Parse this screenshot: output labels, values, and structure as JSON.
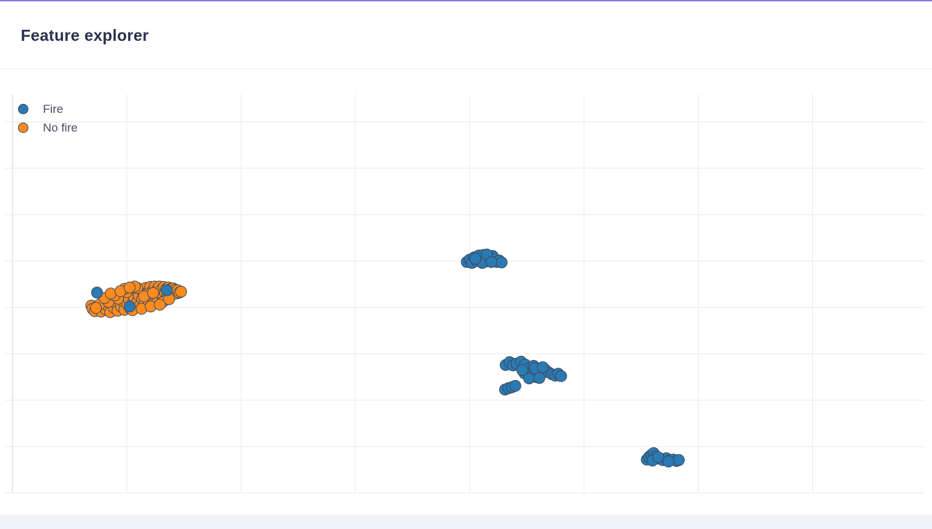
{
  "page": {
    "title": "Feature explorer"
  },
  "colors": {
    "fire": "#2a7ab3",
    "no_fire": "#ff8b1f",
    "marker_outline": "#3b4a5e",
    "grid": "#e8e9ee",
    "accent": "#8f7bd9"
  },
  "chart_data": {
    "type": "scatter",
    "title": "",
    "xlabel": "",
    "ylabel": "",
    "xlim": [
      0,
      15
    ],
    "ylim": [
      0,
      8
    ],
    "grid": true,
    "legend_placement": "top-left",
    "series": [
      {
        "name": "No fire",
        "color_key": "no_fire",
        "points": [
          [
            1.38,
            4.04
          ],
          [
            1.4,
            3.97
          ],
          [
            1.44,
            3.92
          ],
          [
            1.49,
            4.03
          ],
          [
            1.55,
            3.91
          ],
          [
            1.58,
            4.11
          ],
          [
            1.63,
            3.96
          ],
          [
            1.66,
            4.05
          ],
          [
            1.71,
            3.9
          ],
          [
            1.74,
            4.15
          ],
          [
            1.77,
            4.0
          ],
          [
            1.81,
            4.09
          ],
          [
            1.84,
            3.93
          ],
          [
            1.87,
            4.22
          ],
          [
            1.9,
            4.02
          ],
          [
            1.93,
            4.13
          ],
          [
            1.96,
            3.95
          ],
          [
            1.99,
            4.27
          ],
          [
            2.01,
            4.07
          ],
          [
            2.04,
            4.17
          ],
          [
            2.06,
            3.98
          ],
          [
            2.09,
            4.31
          ],
          [
            2.11,
            4.11
          ],
          [
            2.13,
            4.21
          ],
          [
            2.15,
            4.01
          ],
          [
            2.17,
            4.36
          ],
          [
            2.19,
            4.14
          ],
          [
            2.21,
            4.26
          ],
          [
            2.23,
            4.04
          ],
          [
            2.25,
            4.39
          ],
          [
            2.27,
            4.18
          ],
          [
            2.29,
            4.3
          ],
          [
            2.31,
            4.08
          ],
          [
            2.33,
            4.42
          ],
          [
            2.35,
            4.21
          ],
          [
            2.37,
            4.33
          ],
          [
            2.39,
            4.12
          ],
          [
            2.41,
            4.44
          ],
          [
            2.43,
            4.24
          ],
          [
            2.45,
            4.36
          ],
          [
            2.47,
            4.15
          ],
          [
            2.49,
            4.45
          ],
          [
            2.51,
            4.27
          ],
          [
            2.53,
            4.38
          ],
          [
            2.55,
            4.18
          ],
          [
            2.57,
            4.45
          ],
          [
            2.59,
            4.29
          ],
          [
            2.61,
            4.39
          ],
          [
            2.63,
            4.21
          ],
          [
            2.65,
            4.44
          ],
          [
            2.67,
            4.31
          ],
          [
            2.69,
            4.4
          ],
          [
            2.71,
            4.24
          ],
          [
            2.73,
            4.43
          ],
          [
            2.75,
            4.32
          ],
          [
            2.77,
            4.4
          ],
          [
            2.79,
            4.27
          ],
          [
            2.81,
            4.41
          ],
          [
            2.83,
            4.33
          ],
          [
            2.85,
            4.38
          ],
          [
            2.87,
            4.3
          ],
          [
            2.89,
            4.37
          ],
          [
            2.92,
            4.32
          ],
          [
            2.95,
            4.34
          ],
          [
            1.52,
            4.06
          ],
          [
            1.68,
            4.12
          ],
          [
            1.85,
            4.19
          ],
          [
            2.0,
            4.33
          ],
          [
            2.18,
            4.42
          ],
          [
            2.36,
            4.28
          ],
          [
            2.52,
            4.09
          ],
          [
            2.68,
            4.16
          ],
          [
            1.46,
            3.99
          ],
          [
            1.61,
            4.2
          ],
          [
            1.79,
            4.26
          ],
          [
            1.96,
            4.4
          ],
          [
            2.14,
            4.45
          ],
          [
            2.3,
            4.24
          ],
          [
            2.46,
            4.31
          ],
          [
            2.62,
            4.11
          ],
          [
            2.1,
            3.94
          ],
          [
            2.26,
            3.97
          ],
          [
            2.42,
            4.02
          ],
          [
            2.58,
            4.06
          ],
          [
            2.74,
            4.18
          ],
          [
            1.72,
            4.3
          ],
          [
            1.89,
            4.35
          ],
          [
            2.05,
            4.43
          ]
        ]
      },
      {
        "name": "Fire",
        "color_key": "fire",
        "points": [
          [
            1.48,
            4.32
          ],
          [
            2.05,
            4.02
          ],
          [
            2.7,
            4.37
          ],
          [
            7.95,
            4.98
          ],
          [
            8.0,
            5.03
          ],
          [
            8.04,
            4.96
          ],
          [
            8.08,
            5.08
          ],
          [
            8.12,
            5.0
          ],
          [
            8.16,
            5.12
          ],
          [
            8.2,
            5.04
          ],
          [
            8.24,
            5.13
          ],
          [
            8.28,
            4.99
          ],
          [
            8.32,
            5.09
          ],
          [
            8.36,
            5.02
          ],
          [
            8.4,
            5.11
          ],
          [
            8.44,
            5.05
          ],
          [
            8.48,
            4.98
          ],
          [
            8.52,
            5.01
          ],
          [
            8.56,
            4.97
          ],
          [
            8.22,
            4.96
          ],
          [
            8.3,
            5.14
          ],
          [
            8.38,
            4.98
          ],
          [
            8.1,
            5.05
          ],
          [
            8.63,
            2.76
          ],
          [
            8.7,
            2.82
          ],
          [
            8.76,
            2.75
          ],
          [
            8.82,
            2.79
          ],
          [
            8.9,
            2.83
          ],
          [
            8.97,
            2.77
          ],
          [
            9.05,
            2.7
          ],
          [
            9.12,
            2.74
          ],
          [
            9.2,
            2.62
          ],
          [
            9.26,
            2.58
          ],
          [
            9.32,
            2.66
          ],
          [
            9.38,
            2.6
          ],
          [
            9.44,
            2.56
          ],
          [
            9.5,
            2.53
          ],
          [
            9.55,
            2.57
          ],
          [
            9.6,
            2.52
          ],
          [
            9.08,
            2.55
          ],
          [
            9.16,
            2.5
          ],
          [
            8.96,
            2.58
          ],
          [
            9.04,
            2.47
          ],
          [
            9.22,
            2.48
          ],
          [
            8.92,
            2.65
          ],
          [
            9.14,
            2.69
          ],
          [
            9.28,
            2.71
          ],
          [
            8.62,
            2.23
          ],
          [
            8.68,
            2.26
          ],
          [
            8.74,
            2.28
          ],
          [
            8.8,
            2.31
          ],
          [
            11.1,
            0.72
          ],
          [
            11.14,
            0.78
          ],
          [
            11.18,
            0.82
          ],
          [
            11.22,
            0.86
          ],
          [
            11.26,
            0.79
          ],
          [
            11.32,
            0.74
          ],
          [
            11.38,
            0.71
          ],
          [
            11.44,
            0.75
          ],
          [
            11.5,
            0.7
          ],
          [
            11.56,
            0.72
          ],
          [
            11.62,
            0.69
          ],
          [
            11.66,
            0.71
          ],
          [
            11.2,
            0.7
          ],
          [
            11.3,
            0.77
          ],
          [
            11.48,
            0.68
          ]
        ]
      }
    ]
  },
  "legend": {
    "items": [
      {
        "label": "Fire",
        "color_key": "fire"
      },
      {
        "label": "No fire",
        "color_key": "no_fire"
      }
    ]
  }
}
